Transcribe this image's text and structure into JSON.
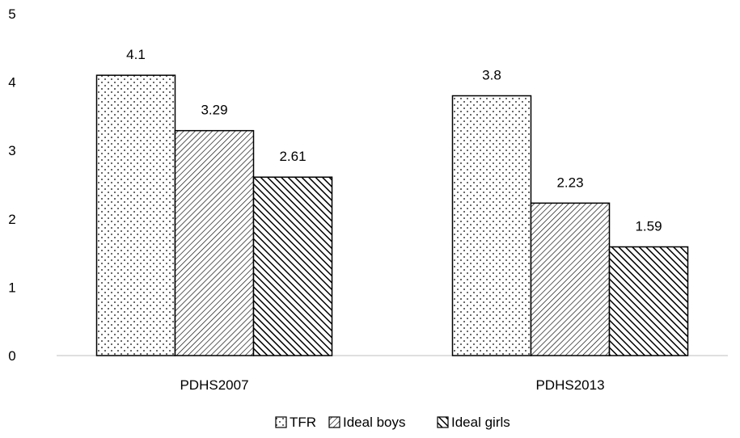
{
  "chart_data": {
    "type": "bar",
    "categories": [
      "PDHS2007",
      "PDHS2013"
    ],
    "series": [
      {
        "name": "TFR",
        "values": [
          4.1,
          3.8
        ],
        "pattern": "dots"
      },
      {
        "name": "Ideal boys",
        "values": [
          3.29,
          2.23
        ],
        "pattern": "light-diagonal"
      },
      {
        "name": "Ideal girls",
        "values": [
          2.61,
          1.59
        ],
        "pattern": "dark-diagonal"
      }
    ],
    "ylim": [
      0,
      5
    ],
    "yticks": [
      0,
      1,
      2,
      3,
      4,
      5
    ],
    "grid": false,
    "legend_position": "bottom",
    "colors": {
      "bar_edge": "#000000",
      "axis": "#bfbfbf",
      "fill": "#ffffff"
    }
  }
}
